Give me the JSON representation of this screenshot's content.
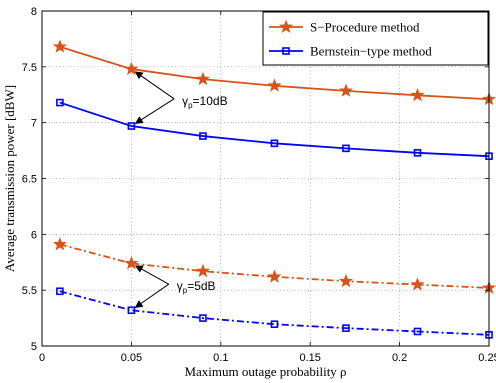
{
  "chart_data": {
    "type": "line",
    "xlabel": "Maximum outage probability ρ",
    "ylabel": "Average transmission power [dBW]",
    "xlim": [
      0,
      0.25
    ],
    "ylim": [
      5,
      8
    ],
    "x_ticks": [
      0,
      0.05,
      0.1,
      0.15,
      0.2,
      0.25
    ],
    "x_tick_labels": [
      "0",
      "0.05",
      "0.1",
      "0.15",
      "0.2",
      "0.25"
    ],
    "y_ticks": [
      5,
      5.5,
      6,
      6.5,
      7,
      7.5,
      8
    ],
    "y_tick_labels": [
      "5",
      "5.5",
      "6",
      "6.5",
      "7",
      "7.5",
      "8"
    ],
    "grid": "dotted",
    "legend": {
      "placement": "top-right",
      "entries": [
        {
          "label": "S−Procedure method",
          "color": "#d95319",
          "marker": "star",
          "style": "solid"
        },
        {
          "label": "Bernstein−type method",
          "color": "#0000ff",
          "marker": "square",
          "style": "solid"
        }
      ]
    },
    "x": [
      0.01,
      0.05,
      0.09,
      0.13,
      0.17,
      0.21,
      0.25
    ],
    "series": [
      {
        "group": "S−Procedure method, γp=10dB",
        "color": "#d95319",
        "marker": "star",
        "style": "solid",
        "values": [
          7.68,
          7.48,
          7.39,
          7.33,
          7.285,
          7.245,
          7.21
        ]
      },
      {
        "group": "Bernstein−type method, γp=10dB",
        "color": "#0000ff",
        "marker": "square",
        "style": "solid",
        "values": [
          7.18,
          6.97,
          6.88,
          6.815,
          6.77,
          6.73,
          6.7
        ]
      },
      {
        "group": "S−Procedure method, γp=5dB",
        "color": "#d95319",
        "marker": "star",
        "style": "dashdot",
        "values": [
          5.91,
          5.74,
          5.67,
          5.62,
          5.58,
          5.55,
          5.52
        ]
      },
      {
        "group": "Bernstein−type method, γp=5dB",
        "color": "#0000ff",
        "marker": "square",
        "style": "dashdot",
        "values": [
          5.49,
          5.32,
          5.25,
          5.195,
          5.16,
          5.13,
          5.1
        ]
      }
    ],
    "annotations": [
      {
        "symbol": "γ",
        "sub": "p",
        "text": "=10dB",
        "arrow_targets": [
          [
            0.05,
            7.48
          ],
          [
            0.05,
            6.97
          ]
        ],
        "text_at": [
          0.075,
          7.16
        ]
      },
      {
        "symbol": "γ",
        "sub": "p",
        "text": "=5dB",
        "arrow_targets": [
          [
            0.05,
            5.74
          ],
          [
            0.05,
            5.32
          ]
        ],
        "text_at": [
          0.072,
          5.5
        ]
      }
    ]
  }
}
